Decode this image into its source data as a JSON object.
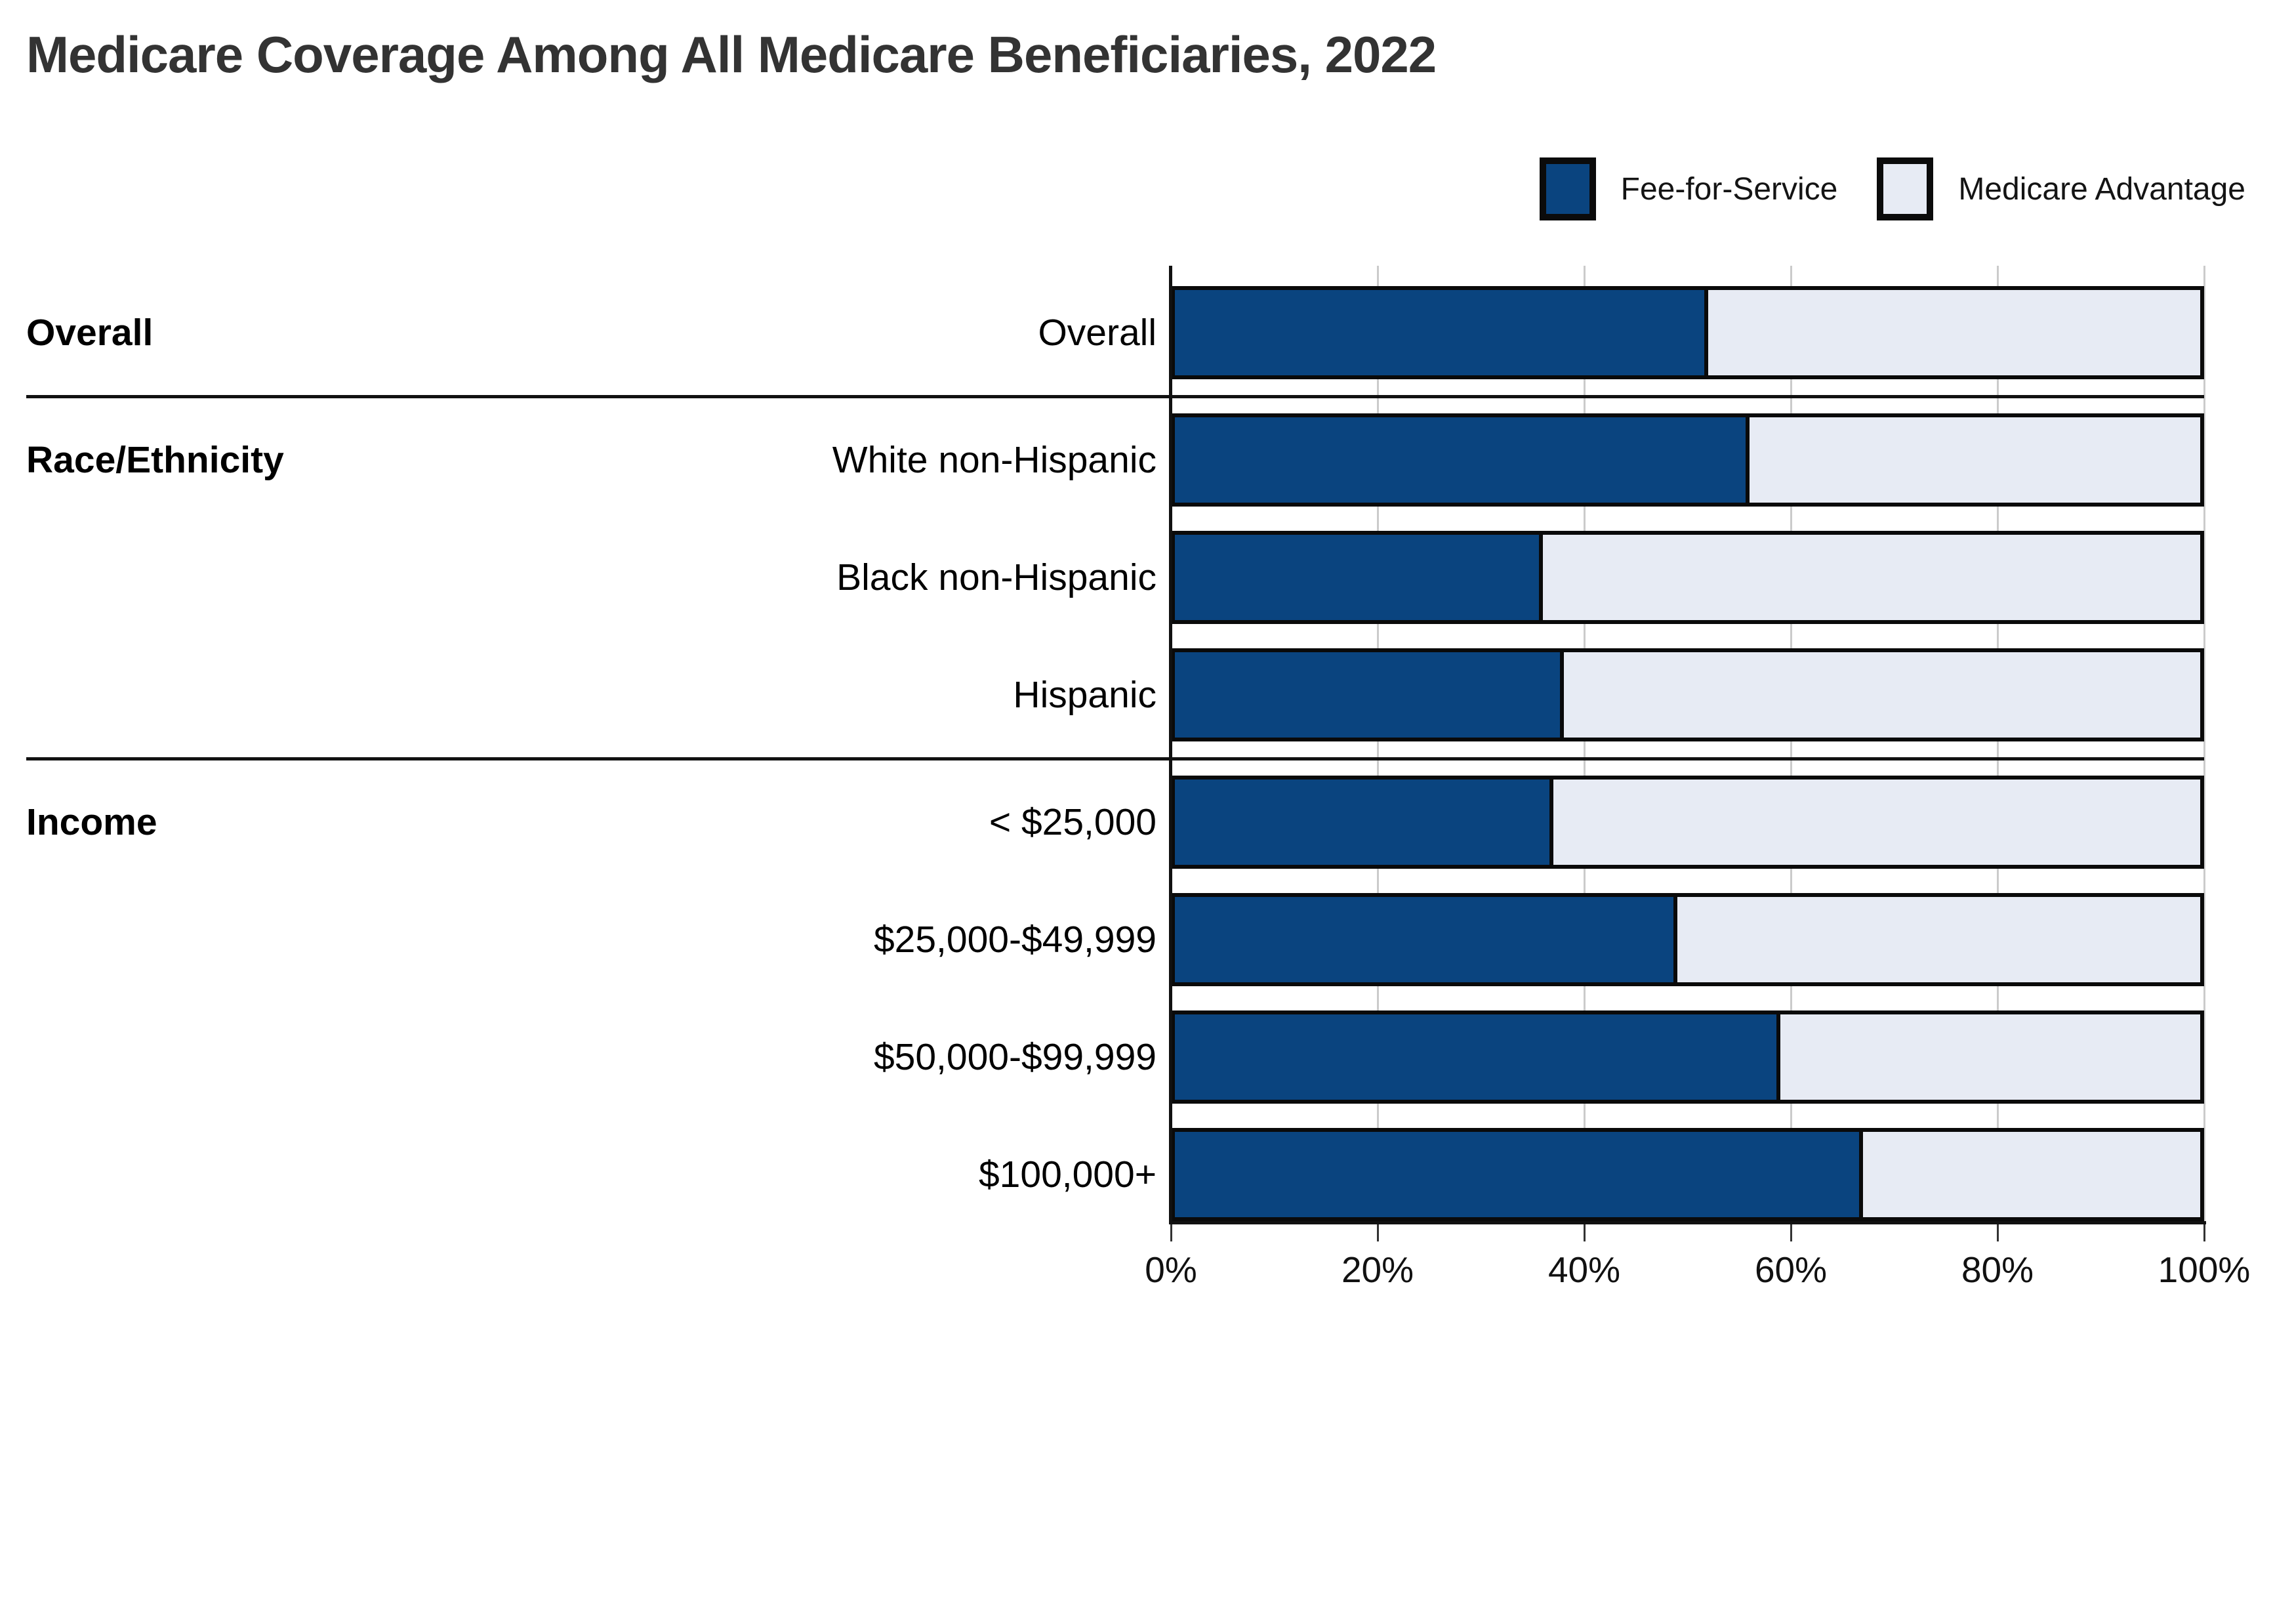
{
  "title": "Medicare Coverage Among All Medicare Beneficiaries, 2022",
  "legend": [
    {
      "label": "Fee-for-Service",
      "color": "#0a447f"
    },
    {
      "label": "Medicare Advantage",
      "color": "#e7ebf4"
    }
  ],
  "colors": {
    "fee_for_service_fill": "#0a447f",
    "medicare_advantage_fill": "#e7ebf4",
    "bar_border": "#0a0a0a",
    "gridline": "#cbcbcb",
    "axis": "#111111",
    "title_text": "#333333",
    "label_text": "#000000"
  },
  "chart_data": {
    "type": "bar",
    "orientation": "horizontal",
    "stacked": true,
    "title": "Medicare Coverage Among All Medicare Beneficiaries, 2022",
    "xlabel": "",
    "ylabel": "",
    "xlim": [
      0,
      100
    ],
    "x_ticks": [
      "0%",
      "20%",
      "40%",
      "60%",
      "80%",
      "100%"
    ],
    "grid": true,
    "legend_position": "top-right",
    "series_names": [
      "Fee-for-Service",
      "Medicare Advantage"
    ],
    "sections": [
      {
        "section": "Overall",
        "rows": [
          {
            "label": "Overall",
            "fee_for_service": 52,
            "medicare_advantage": 48
          }
        ]
      },
      {
        "section": "Race/Ethnicity",
        "rows": [
          {
            "label": "White non-Hispanic",
            "fee_for_service": 56,
            "medicare_advantage": 44
          },
          {
            "label": "Black non-Hispanic",
            "fee_for_service": 36,
            "medicare_advantage": 64
          },
          {
            "label": "Hispanic",
            "fee_for_service": 38,
            "medicare_advantage": 62
          }
        ]
      },
      {
        "section": "Income",
        "rows": [
          {
            "label": "< $25,000",
            "fee_for_service": 37,
            "medicare_advantage": 63
          },
          {
            "label": "$25,000-$49,999",
            "fee_for_service": 49,
            "medicare_advantage": 51
          },
          {
            "label": "$50,000-$99,999",
            "fee_for_service": 59,
            "medicare_advantage": 41
          },
          {
            "label": "$100,000+",
            "fee_for_service": 67,
            "medicare_advantage": 33
          }
        ]
      }
    ]
  }
}
